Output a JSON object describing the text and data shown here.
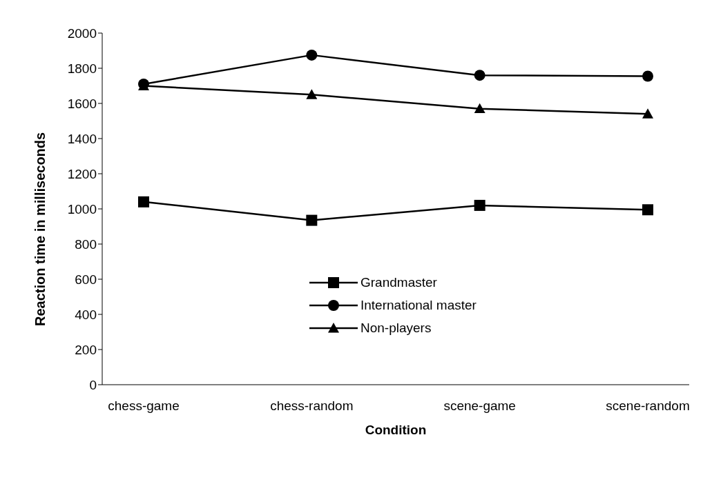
{
  "chart_data": {
    "type": "line",
    "xlabel": "Condition",
    "ylabel": "Reaction time in milliseconds",
    "categories": [
      "chess-game",
      "chess-random",
      "scene-game",
      "scene-random"
    ],
    "series": [
      {
        "name": "Grandmaster",
        "color": "#000000",
        "marker": "square",
        "values": [
          1040,
          935,
          1020,
          995
        ]
      },
      {
        "name": "International master",
        "color": "#000000",
        "marker": "circle",
        "values": [
          1710,
          1875,
          1760,
          1755
        ]
      },
      {
        "name": "Non-players",
        "color": "#000000",
        "marker": "triangle",
        "values": [
          1700,
          1650,
          1570,
          1540
        ]
      }
    ],
    "ylim": [
      0,
      2000
    ],
    "yticks": [
      0,
      200,
      400,
      600,
      800,
      1000,
      1200,
      1400,
      1600,
      1800,
      2000
    ],
    "grid": false,
    "legend": "bottom",
    "line_style": "solid"
  }
}
